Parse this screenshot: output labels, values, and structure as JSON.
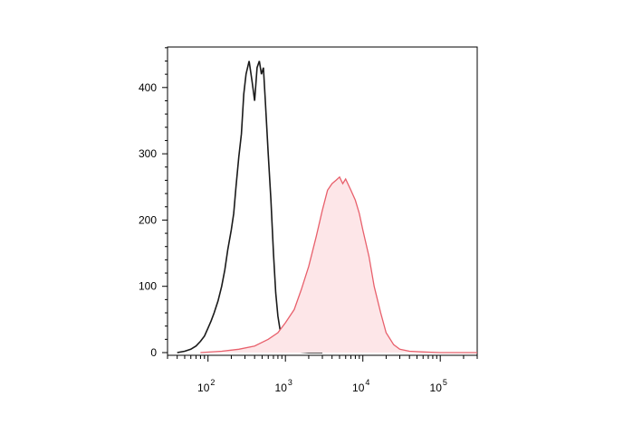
{
  "chart_data": {
    "type": "area",
    "title": "",
    "xlabel": "",
    "ylabel": "",
    "x_scale": "log",
    "xlim": [
      30,
      300000
    ],
    "ylim": [
      0,
      460
    ],
    "x_ticks": [
      {
        "value": 100,
        "base": "10",
        "exp": "2"
      },
      {
        "value": 1000,
        "base": "10",
        "exp": "3"
      },
      {
        "value": 10000,
        "base": "10",
        "exp": "4"
      },
      {
        "value": 100000,
        "base": "10",
        "exp": "5"
      }
    ],
    "y_ticks": [
      {
        "value": 0,
        "label": "0"
      },
      {
        "value": 100,
        "label": "100"
      },
      {
        "value": 200,
        "label": "200"
      },
      {
        "value": 300,
        "label": "300"
      },
      {
        "value": 400,
        "label": "400"
      }
    ],
    "grid": false,
    "legend": "none",
    "series": [
      {
        "style": "line",
        "color": "#1a1a1a",
        "x": [
          40,
          50,
          60,
          70,
          80,
          90,
          100,
          110,
          120,
          135,
          150,
          165,
          180,
          200,
          215,
          230,
          250,
          270,
          290,
          310,
          340,
          370,
          400,
          430,
          460,
          490,
          520,
          550,
          600,
          650,
          700,
          750,
          800,
          850,
          900,
          1000,
          1100,
          1300,
          1600,
          2000,
          3000
        ],
        "y": [
          0,
          2,
          5,
          10,
          17,
          25,
          37,
          48,
          60,
          78,
          100,
          125,
          155,
          185,
          210,
          250,
          295,
          330,
          390,
          420,
          440,
          410,
          380,
          430,
          440,
          420,
          430,
          380,
          300,
          230,
          150,
          90,
          55,
          35,
          20,
          10,
          6,
          3,
          1,
          0,
          0
        ]
      },
      {
        "style": "filled",
        "color": "#e8606c",
        "fill": "#fde6e8",
        "x": [
          80,
          150,
          250,
          400,
          600,
          800,
          1000,
          1300,
          1600,
          2000,
          2500,
          3000,
          3500,
          4000,
          4500,
          5000,
          5500,
          6000,
          7000,
          8000,
          9000,
          10000,
          12000,
          14000,
          17000,
          20000,
          25000,
          30000,
          40000,
          60000,
          100000,
          300000
        ],
        "y": [
          0,
          2,
          5,
          10,
          20,
          30,
          45,
          65,
          95,
          130,
          175,
          215,
          245,
          255,
          260,
          265,
          255,
          262,
          245,
          230,
          210,
          185,
          145,
          100,
          60,
          30,
          12,
          5,
          2,
          1,
          0,
          0
        ]
      }
    ]
  }
}
